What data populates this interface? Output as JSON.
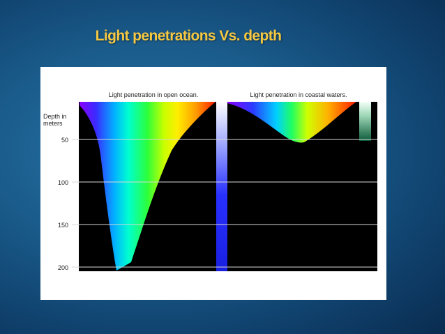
{
  "slide": {
    "title": "Light penetrations Vs. depth",
    "title_color": "#f5c842"
  },
  "figure": {
    "panel_open_ocean_title": "Light penetration in open ocean.",
    "panel_coastal_title": "Light penetration in coastal waters.",
    "depth_axis_label_line1": "Depth in",
    "depth_axis_label_line2": "meters",
    "depth_ticks": [
      "50",
      "100",
      "150",
      "200"
    ],
    "spectrum_colors": [
      "#8a00ff",
      "#3a2bff",
      "#00b4ff",
      "#00ffd0",
      "#2cff3a",
      "#c8ff00",
      "#ffee00",
      "#ff9900",
      "#ff1a00"
    ]
  }
}
